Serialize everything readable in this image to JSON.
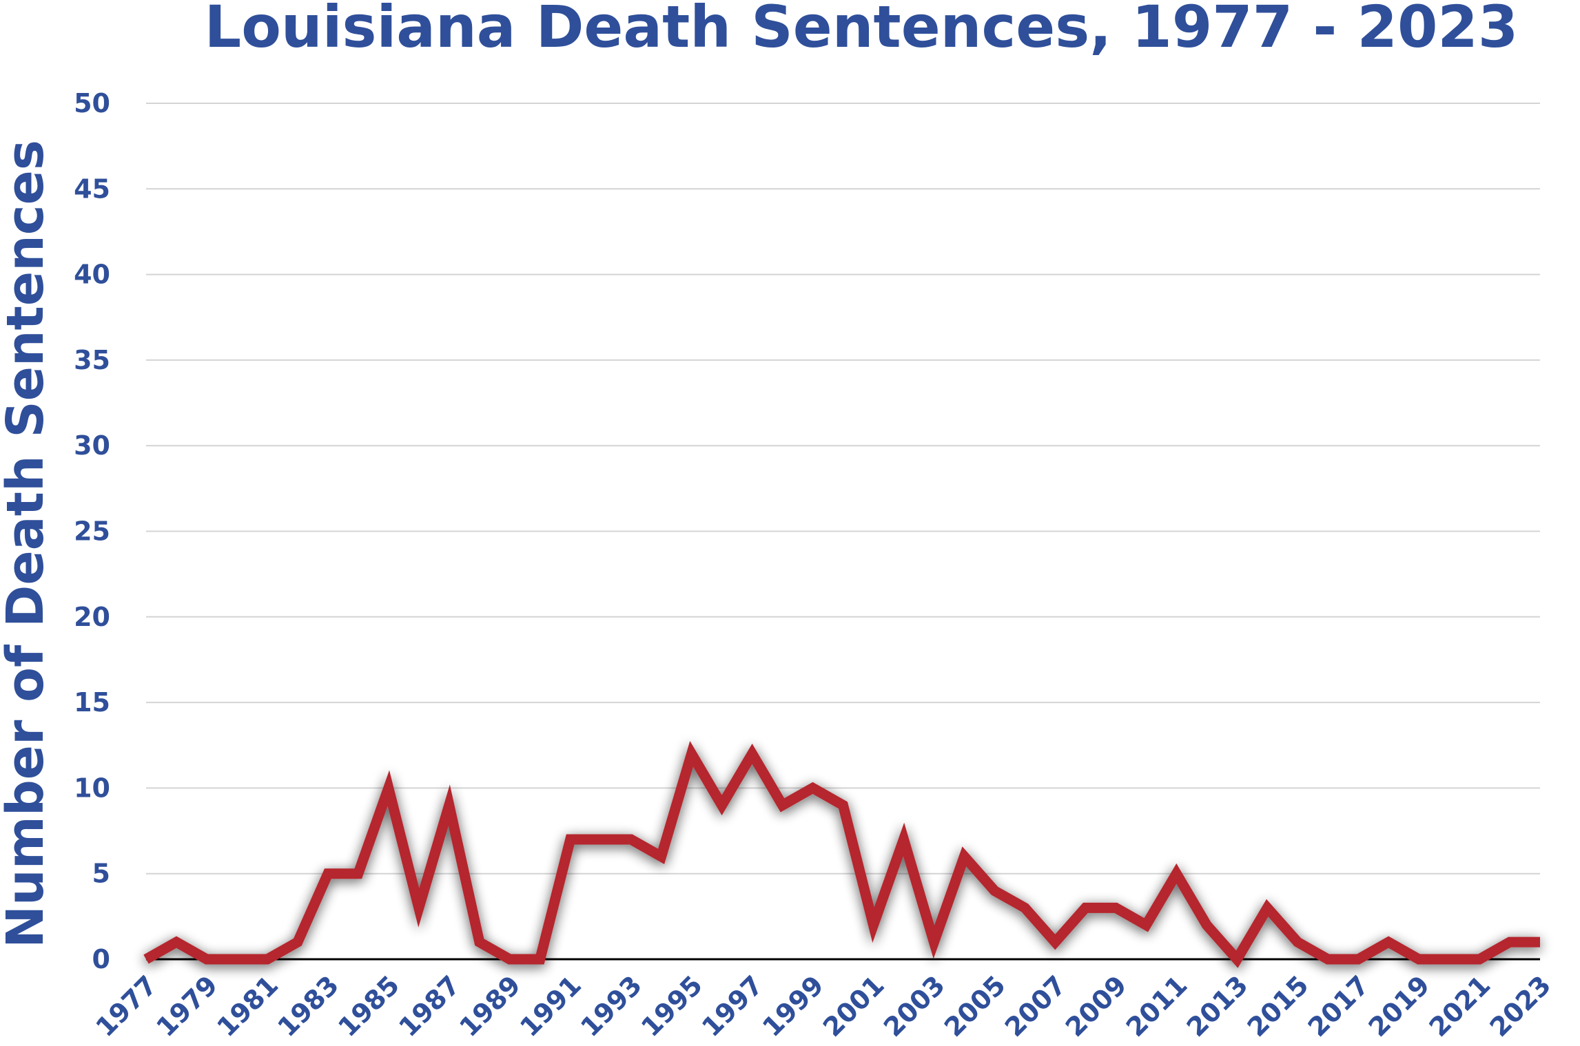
{
  "chart_data": {
    "type": "line",
    "title": "Louisiana Death Sentences, 1977 - 2023",
    "xlabel": "",
    "ylabel": "Number of Death Sentences",
    "ylim": [
      0,
      50
    ],
    "yticks": [
      "0",
      "5",
      "10",
      "15",
      "20",
      "25",
      "30",
      "35",
      "40",
      "45",
      "50"
    ],
    "grid": true,
    "line_color": "#b5282e",
    "text_color": "#2f4f9a",
    "x": [
      1977,
      1978,
      1979,
      1980,
      1981,
      1982,
      1983,
      1984,
      1985,
      1986,
      1987,
      1988,
      1989,
      1990,
      1991,
      1992,
      1993,
      1994,
      1995,
      1996,
      1997,
      1998,
      1999,
      2000,
      2001,
      2002,
      2003,
      2004,
      2005,
      2006,
      2007,
      2008,
      2009,
      2010,
      2011,
      2012,
      2013,
      2014,
      2015,
      2016,
      2017,
      2018,
      2019,
      2020,
      2021,
      2022,
      2023
    ],
    "xtick_labels": [
      "1977",
      "1979",
      "1981",
      "1983",
      "1985",
      "1987",
      "1989",
      "1991",
      "1993",
      "1995",
      "1997",
      "1999",
      "2001",
      "2003",
      "2005",
      "2007",
      "2009",
      "2011",
      "2013",
      "2015",
      "2017",
      "2019",
      "2021",
      "2023"
    ],
    "series": [
      {
        "values": [
          0,
          1,
          0,
          0,
          0,
          1,
          5,
          5,
          10,
          3,
          9,
          1,
          0,
          0,
          7,
          7,
          7,
          6,
          12,
          9,
          12,
          9,
          10,
          9,
          2,
          7,
          1,
          6,
          4,
          3,
          1,
          3,
          3,
          2,
          5,
          2,
          0,
          3,
          1,
          0,
          0,
          1,
          0,
          0,
          0,
          1,
          1
        ]
      }
    ]
  }
}
